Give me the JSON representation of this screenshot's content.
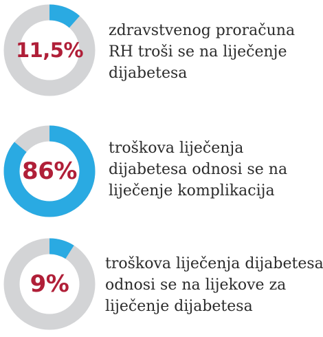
{
  "colors": {
    "accent": "#2aaae2",
    "track": "#d3d4d6",
    "value_text": "#b01f38",
    "caption_text": "#2b2b2b"
  },
  "chart_data": [
    {
      "type": "pie",
      "value_label": "11,5%",
      "fraction": 0.115,
      "caption_lines": [
        "zdravstvenog proračuna",
        "RH troši se na liječenje",
        "dijabetesa"
      ]
    },
    {
      "type": "pie",
      "value_label": "86%",
      "fraction": 0.86,
      "caption_lines": [
        "troškova liječenja",
        "dijabetesa odnosi se na",
        "liječenje komplikacija"
      ]
    },
    {
      "type": "pie",
      "value_label": "9%",
      "fraction": 0.09,
      "caption_lines": [
        "troškova liječenja dijabetesa",
        "odnosi se na lijekove za",
        "liječenje dijabetesa"
      ]
    }
  ]
}
